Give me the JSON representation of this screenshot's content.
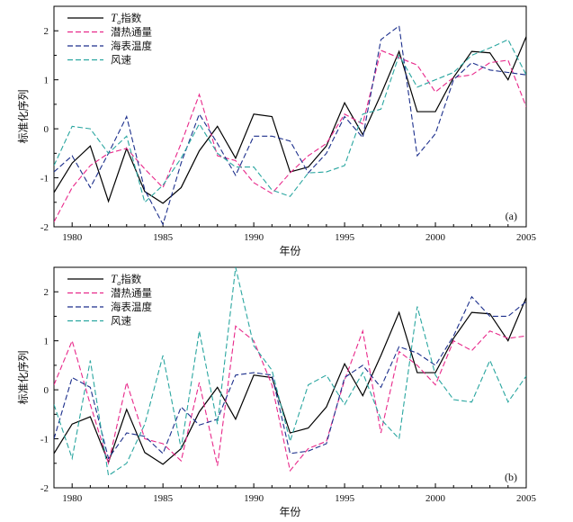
{
  "colors": {
    "ts": "#000000",
    "latent": "#e8288a",
    "sst": "#1c2f8c",
    "wind": "#2aa6a0"
  },
  "chart_data": [
    {
      "type": "line",
      "panel_label": "(a)",
      "xlabel": "年份",
      "ylabel": "标准化序列",
      "xlim": [
        1979,
        2005
      ],
      "ylim": [
        -2,
        2.5
      ],
      "xticks": [
        1980,
        1985,
        1990,
        1995,
        2000,
        2005
      ],
      "yticks": [
        -2,
        -1,
        0,
        1,
        2
      ],
      "legend_position": "top-left",
      "x": [
        1979,
        1980,
        1981,
        1982,
        1983,
        1984,
        1985,
        1986,
        1987,
        1988,
        1989,
        1990,
        1991,
        1992,
        1993,
        1994,
        1995,
        1996,
        1997,
        1998,
        1999,
        2000,
        2001,
        2002,
        2003,
        2004,
        2005
      ],
      "series": [
        {
          "name_sym": "T",
          "name_sub": "a",
          "name": "指数",
          "key": "ts",
          "dashed": false,
          "values": [
            -1.3,
            -0.7,
            -0.35,
            -1.48,
            -0.4,
            -1.28,
            -1.52,
            -1.2,
            -0.45,
            0.05,
            -0.6,
            0.3,
            0.25,
            -0.88,
            -0.78,
            -0.35,
            0.53,
            -0.12,
            0.7,
            1.58,
            0.35,
            0.35,
            1.05,
            1.58,
            1.55,
            1.0,
            1.88
          ]
        },
        {
          "name": "潜热通量",
          "key": "latent",
          "dashed": true,
          "values": [
            -1.9,
            -1.2,
            -0.75,
            -0.5,
            -0.4,
            -0.82,
            -1.2,
            -0.3,
            0.7,
            -0.55,
            -0.65,
            -1.1,
            -1.32,
            -0.9,
            -0.55,
            -0.3,
            0.3,
            0.1,
            1.6,
            1.45,
            1.3,
            0.75,
            1.05,
            1.1,
            1.35,
            1.4,
            0.45
          ]
        },
        {
          "name": "海表温度",
          "key": "sst",
          "dashed": true,
          "values": [
            -0.88,
            -0.55,
            -1.2,
            -0.5,
            0.25,
            -1.25,
            -1.95,
            -0.7,
            0.3,
            -0.3,
            -0.95,
            -0.15,
            -0.15,
            -0.25,
            -0.9,
            -0.5,
            0.25,
            -0.18,
            1.82,
            2.1,
            -0.55,
            -0.1,
            1.0,
            1.35,
            1.2,
            1.15,
            1.1
          ]
        },
        {
          "name": "风速",
          "key": "wind",
          "dashed": true,
          "values": [
            -0.75,
            0.05,
            0.0,
            -0.5,
            -0.15,
            -1.5,
            -1.15,
            -0.6,
            0.1,
            -0.5,
            -0.78,
            -0.78,
            -1.25,
            -1.38,
            -0.9,
            -0.88,
            -0.75,
            0.3,
            0.4,
            1.5,
            0.85,
            1.0,
            1.15,
            1.5,
            1.65,
            1.82,
            1.1
          ]
        }
      ]
    },
    {
      "type": "line",
      "panel_label": "(b)",
      "xlabel": "年份",
      "ylabel": "标准化序列",
      "xlim": [
        1979,
        2005
      ],
      "ylim": [
        -2,
        2.5
      ],
      "xticks": [
        1980,
        1985,
        1990,
        1995,
        2000,
        2005
      ],
      "yticks": [
        -2,
        -1,
        0,
        1,
        2
      ],
      "legend_position": "top-left",
      "x": [
        1979,
        1980,
        1981,
        1982,
        1983,
        1984,
        1985,
        1986,
        1987,
        1988,
        1989,
        1990,
        1991,
        1992,
        1993,
        1994,
        1995,
        1996,
        1997,
        1998,
        1999,
        2000,
        2001,
        2002,
        2003,
        2004,
        2005
      ],
      "series": [
        {
          "name_sym": "T",
          "name_sub": "a",
          "name": "指数",
          "key": "ts",
          "dashed": false,
          "values": [
            -1.3,
            -0.7,
            -0.55,
            -1.48,
            -0.4,
            -1.28,
            -1.52,
            -1.2,
            -0.45,
            0.05,
            -0.6,
            0.3,
            0.25,
            -0.88,
            -0.78,
            -0.35,
            0.53,
            -0.12,
            0.7,
            1.58,
            0.35,
            0.35,
            1.05,
            1.58,
            1.55,
            1.0,
            1.88
          ]
        },
        {
          "name": "潜热通量",
          "key": "latent",
          "dashed": true,
          "values": [
            0.1,
            1.0,
            -0.3,
            -1.5,
            0.15,
            -1.0,
            -1.1,
            -1.45,
            0.15,
            -1.55,
            1.3,
            1.0,
            0.1,
            -1.65,
            -1.2,
            -1.05,
            0.2,
            1.2,
            -0.88,
            0.78,
            0.5,
            0.1,
            1.0,
            0.8,
            1.2,
            1.05,
            1.1
          ]
        },
        {
          "name": "海表温度",
          "key": "sst",
          "dashed": true,
          "values": [
            -1.0,
            0.25,
            0.05,
            -1.4,
            -0.88,
            -0.95,
            -1.3,
            -0.35,
            -0.72,
            -0.6,
            0.3,
            0.35,
            0.3,
            -1.3,
            -1.25,
            -1.1,
            0.25,
            0.5,
            0.05,
            0.88,
            0.75,
            0.5,
            1.1,
            1.9,
            1.5,
            1.5,
            1.8
          ]
        },
        {
          "name": "风速",
          "key": "wind",
          "dashed": true,
          "values": [
            -0.3,
            -1.4,
            0.6,
            -1.75,
            -1.5,
            -0.7,
            0.7,
            -1.2,
            1.2,
            -0.7,
            2.5,
            0.9,
            0.4,
            -1.05,
            0.1,
            0.3,
            -0.3,
            0.35,
            -0.6,
            -1.0,
            1.7,
            0.3,
            -0.2,
            -0.25,
            0.6,
            -0.25,
            0.28
          ]
        }
      ]
    }
  ]
}
